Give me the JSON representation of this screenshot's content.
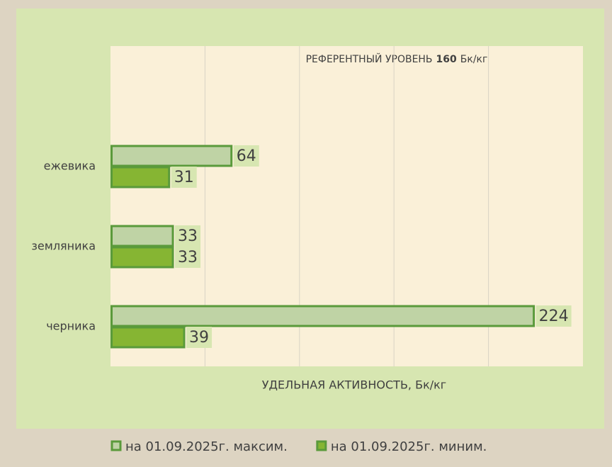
{
  "chart_data": {
    "type": "hbar",
    "annotation": [
      "РЕФЕРЕНТНЫЙ УРОВЕНЬ",
      "160",
      "Бк/кг"
    ],
    "xlabel": "УДЕЛЬНАЯ АКТИВНОСТЬ, Бк/кг",
    "categories": [
      "ежевика",
      "земляника",
      "черника"
    ],
    "series": [
      {
        "name": "на 01.09.2025г. максим.",
        "color": "#bfd3a5",
        "values": [
          64,
          33,
          224
        ]
      },
      {
        "name": "на 01.09.2025г. миним.",
        "color": "#86b533",
        "values": [
          31,
          33,
          39
        ]
      }
    ],
    "xlim": [
      0,
      250
    ],
    "xticks": [
      0,
      50,
      100,
      150,
      200,
      250
    ],
    "grid": true
  }
}
